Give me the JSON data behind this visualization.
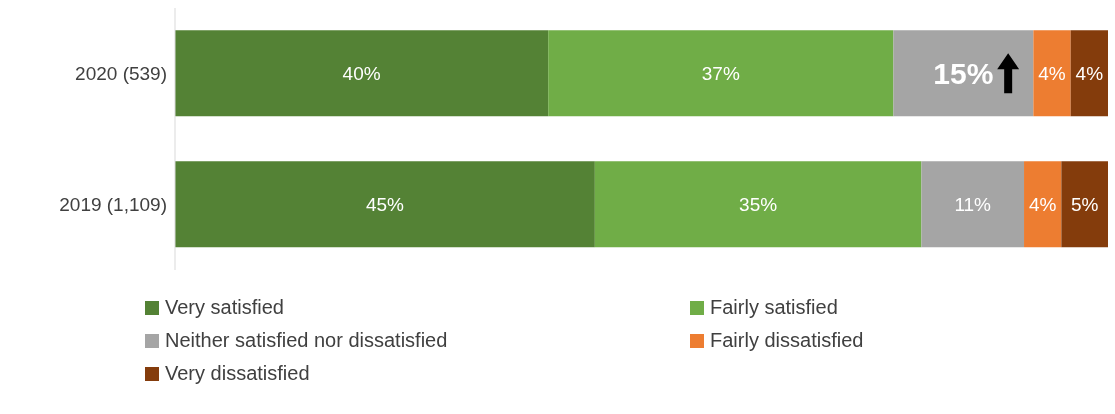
{
  "chart_data": {
    "type": "bar",
    "orientation": "horizontal",
    "stacked": true,
    "legend": "bottom",
    "tick_labels": "y",
    "categories": [
      "2020 (539)",
      "2019 (1,109)"
    ],
    "series": [
      {
        "name": "Very satisfied",
        "color": "#548235",
        "values": [
          40,
          45
        ],
        "value_labels": [
          "40%",
          "45%"
        ]
      },
      {
        "name": "Fairly satisfied",
        "color": "#70ad47",
        "values": [
          37,
          35
        ],
        "value_labels": [
          "37%",
          "35%"
        ]
      },
      {
        "name": "Neither satisfied nor dissatisfied",
        "color": "#a5a5a5",
        "values": [
          15,
          11
        ],
        "value_labels": [
          "15%",
          "11%"
        ]
      },
      {
        "name": "Fairly dissatisfied",
        "color": "#ed7d31",
        "values": [
          4,
          4
        ],
        "value_labels": [
          "4%",
          "4%"
        ]
      },
      {
        "name": "Very dissatisfied",
        "color": "#843c0c",
        "values": [
          4,
          5
        ],
        "value_labels": [
          "4%",
          "5%"
        ]
      }
    ]
  }
}
